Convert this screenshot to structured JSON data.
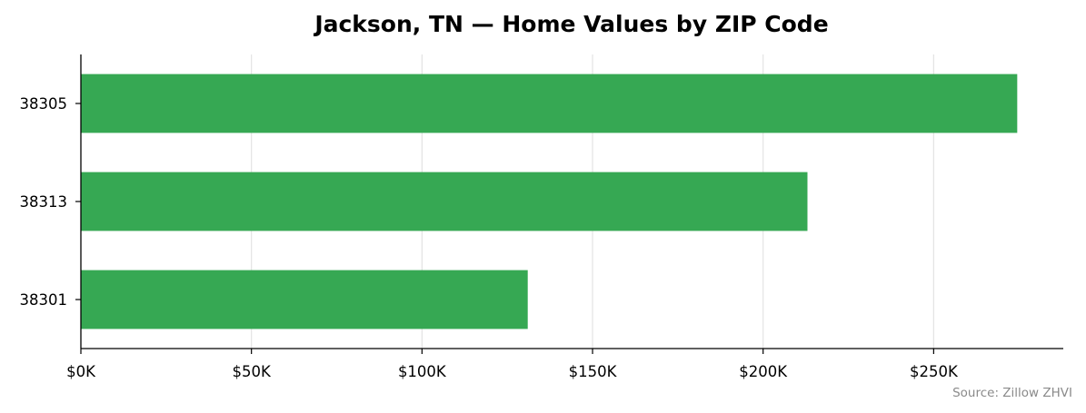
{
  "chart_data": {
    "type": "bar",
    "orientation": "horizontal",
    "title": "Jackson, TN — Home Values by ZIP Code",
    "categories": [
      "38305",
      "38313",
      "38301"
    ],
    "values": [
      274500,
      213000,
      131000
    ],
    "xlim": [
      0,
      288000
    ],
    "xticks": [
      0,
      50000,
      100000,
      150000,
      200000,
      250000
    ],
    "xtick_labels": [
      "$0K",
      "$50K",
      "$100K",
      "$150K",
      "$200K",
      "$250K"
    ],
    "xlabel": "",
    "ylabel": "",
    "grid": "vertical",
    "bar_color": "#36a853",
    "source": "Source: Zillow ZHVI"
  }
}
